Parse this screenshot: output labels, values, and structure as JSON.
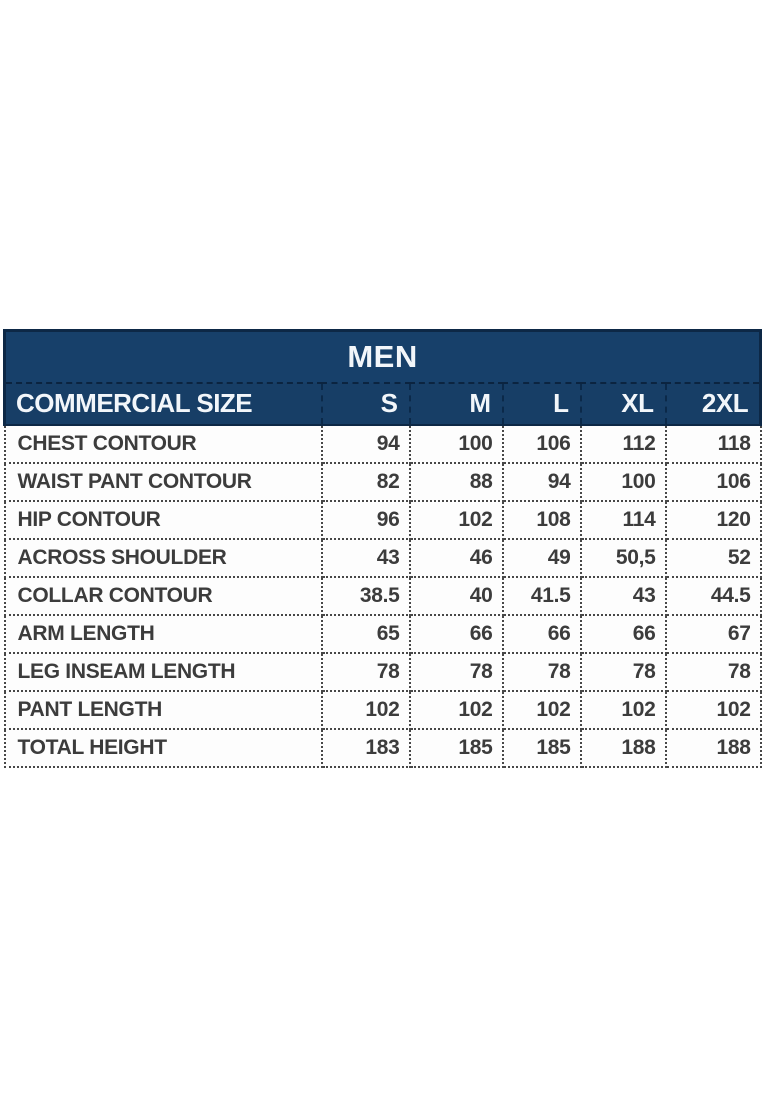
{
  "chart_data": {
    "type": "table",
    "title": "MEN",
    "columns": [
      "COMMERCIAL SIZE",
      "S",
      "M",
      "L",
      "XL",
      "2XL"
    ],
    "rows": [
      {
        "label": "CHEST CONTOUR",
        "values": [
          "94",
          "100",
          "106",
          "112",
          "118"
        ]
      },
      {
        "label": "WAIST PANT CONTOUR",
        "values": [
          "82",
          "88",
          "94",
          "100",
          "106"
        ]
      },
      {
        "label": "HIP CONTOUR",
        "values": [
          "96",
          "102",
          "108",
          "114",
          "120"
        ]
      },
      {
        "label": "ACROSS SHOULDER",
        "values": [
          "43",
          "46",
          "49",
          "50,5",
          "52"
        ]
      },
      {
        "label": "COLLAR CONTOUR",
        "values": [
          "38.5",
          "40",
          "41.5",
          "43",
          "44.5"
        ]
      },
      {
        "label": "ARM LENGTH",
        "values": [
          "65",
          "66",
          "66",
          "66",
          "67"
        ]
      },
      {
        "label": "LEG INSEAM LENGTH",
        "values": [
          "78",
          "78",
          "78",
          "78",
          "78"
        ]
      },
      {
        "label": "PANT LENGTH",
        "values": [
          "102",
          "102",
          "102",
          "102",
          "102"
        ]
      },
      {
        "label": "TOTAL HEIGHT",
        "values": [
          "183",
          "185",
          "185",
          "188",
          "188"
        ]
      }
    ],
    "layout": {
      "header_rows": 2,
      "value_alignment": "right",
      "grid": "dotted"
    }
  },
  "colors": {
    "header_bg": "#17406a",
    "header_border": "#0d2846",
    "header_text": "#f2f6fa",
    "body_text": "#3c3c3c",
    "dotted_grid": "#474747",
    "page_bg": "#ffffff"
  }
}
